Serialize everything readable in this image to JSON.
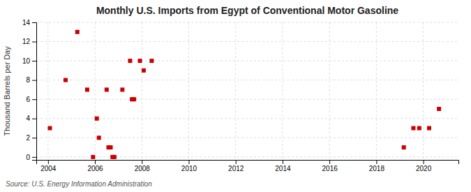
{
  "chart_data": {
    "type": "scatter",
    "title": "Monthly U.S. Imports from Egypt of Conventional Motor Gasoline",
    "y_label": "Thousand Barrels per Day",
    "annotations": [
      "Source: U.S. Energy Information Administration"
    ],
    "x": [
      2004.08,
      2004.75,
      2005.25,
      2005.67,
      2005.92,
      2006.08,
      2006.17,
      2006.5,
      2006.58,
      2006.67,
      2006.75,
      2006.83,
      2007.17,
      2007.5,
      2007.58,
      2007.67,
      2007.92,
      2008.08,
      2008.42,
      2019.17,
      2019.58,
      2019.83,
      2020.25,
      2020.67
    ],
    "values": [
      3,
      8,
      13,
      7,
      0,
      4,
      2,
      7,
      1,
      1,
      0,
      0,
      7,
      10,
      6,
      6,
      10,
      9,
      10,
      1,
      3,
      3,
      3,
      5
    ],
    "color": "#cc0000",
    "marker": "square",
    "xlim": [
      2003.5,
      2021.5
    ],
    "ylim": [
      -0.3,
      14
    ],
    "xticks": [
      2004,
      2006,
      2008,
      2010,
      2012,
      2014,
      2016,
      2018,
      2020
    ],
    "yticks": [
      0,
      2,
      4,
      6,
      8,
      10,
      12,
      14
    ],
    "grid": true
  }
}
